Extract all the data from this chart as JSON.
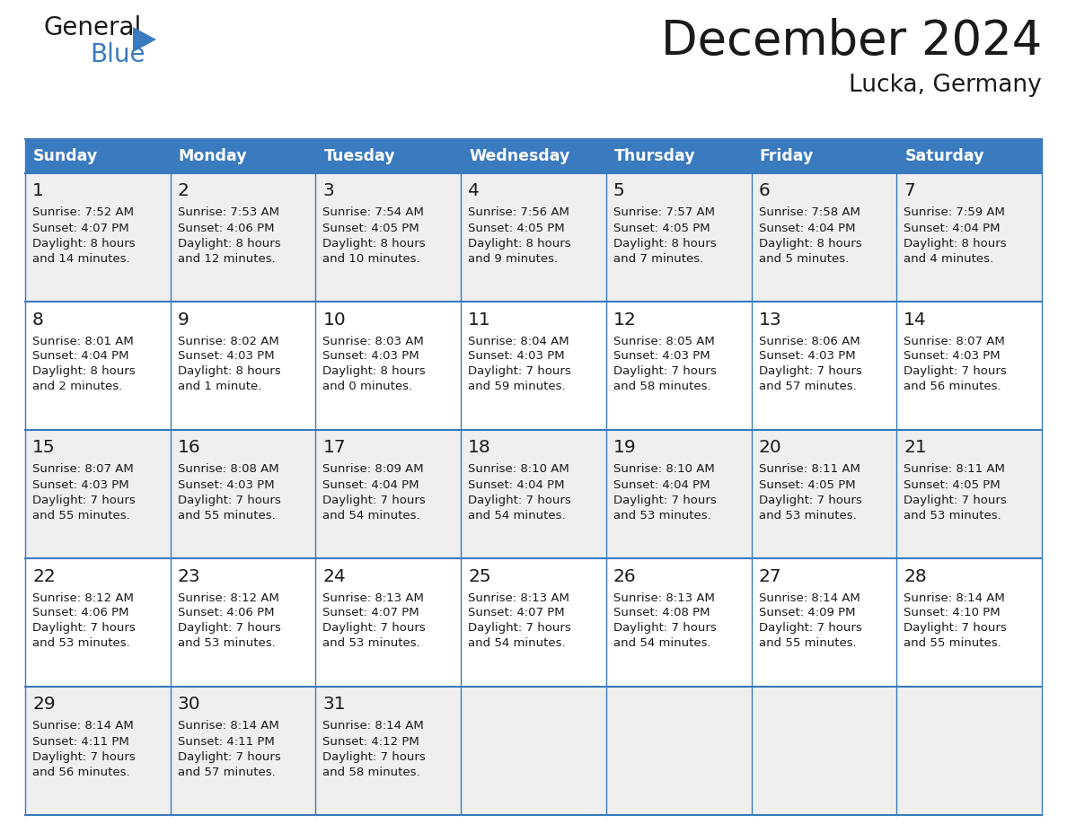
{
  "title": "December 2024",
  "subtitle": "Lucka, Germany",
  "header_color": "#3a7abf",
  "header_text_color": "#ffffff",
  "row_colors": [
    "#efefef",
    "#ffffff",
    "#efefef",
    "#ffffff",
    "#efefef"
  ],
  "border_color": "#3a7abf",
  "text_color": "#1a1a1a",
  "day_headers": [
    "Sunday",
    "Monday",
    "Tuesday",
    "Wednesday",
    "Thursday",
    "Friday",
    "Saturday"
  ],
  "days": [
    {
      "day": 1,
      "col": 0,
      "row": 0,
      "sunrise": "7:52 AM",
      "sunset": "4:07 PM",
      "daylight_hours": 8,
      "daylight_minutes": 14
    },
    {
      "day": 2,
      "col": 1,
      "row": 0,
      "sunrise": "7:53 AM",
      "sunset": "4:06 PM",
      "daylight_hours": 8,
      "daylight_minutes": 12
    },
    {
      "day": 3,
      "col": 2,
      "row": 0,
      "sunrise": "7:54 AM",
      "sunset": "4:05 PM",
      "daylight_hours": 8,
      "daylight_minutes": 10
    },
    {
      "day": 4,
      "col": 3,
      "row": 0,
      "sunrise": "7:56 AM",
      "sunset": "4:05 PM",
      "daylight_hours": 8,
      "daylight_minutes": 9
    },
    {
      "day": 5,
      "col": 4,
      "row": 0,
      "sunrise": "7:57 AM",
      "sunset": "4:05 PM",
      "daylight_hours": 8,
      "daylight_minutes": 7
    },
    {
      "day": 6,
      "col": 5,
      "row": 0,
      "sunrise": "7:58 AM",
      "sunset": "4:04 PM",
      "daylight_hours": 8,
      "daylight_minutes": 5
    },
    {
      "day": 7,
      "col": 6,
      "row": 0,
      "sunrise": "7:59 AM",
      "sunset": "4:04 PM",
      "daylight_hours": 8,
      "daylight_minutes": 4
    },
    {
      "day": 8,
      "col": 0,
      "row": 1,
      "sunrise": "8:01 AM",
      "sunset": "4:04 PM",
      "daylight_hours": 8,
      "daylight_minutes": 2
    },
    {
      "day": 9,
      "col": 1,
      "row": 1,
      "sunrise": "8:02 AM",
      "sunset": "4:03 PM",
      "daylight_hours": 8,
      "daylight_minutes": 1
    },
    {
      "day": 10,
      "col": 2,
      "row": 1,
      "sunrise": "8:03 AM",
      "sunset": "4:03 PM",
      "daylight_hours": 8,
      "daylight_minutes": 0
    },
    {
      "day": 11,
      "col": 3,
      "row": 1,
      "sunrise": "8:04 AM",
      "sunset": "4:03 PM",
      "daylight_hours": 7,
      "daylight_minutes": 59
    },
    {
      "day": 12,
      "col": 4,
      "row": 1,
      "sunrise": "8:05 AM",
      "sunset": "4:03 PM",
      "daylight_hours": 7,
      "daylight_minutes": 58
    },
    {
      "day": 13,
      "col": 5,
      "row": 1,
      "sunrise": "8:06 AM",
      "sunset": "4:03 PM",
      "daylight_hours": 7,
      "daylight_minutes": 57
    },
    {
      "day": 14,
      "col": 6,
      "row": 1,
      "sunrise": "8:07 AM",
      "sunset": "4:03 PM",
      "daylight_hours": 7,
      "daylight_minutes": 56
    },
    {
      "day": 15,
      "col": 0,
      "row": 2,
      "sunrise": "8:07 AM",
      "sunset": "4:03 PM",
      "daylight_hours": 7,
      "daylight_minutes": 55
    },
    {
      "day": 16,
      "col": 1,
      "row": 2,
      "sunrise": "8:08 AM",
      "sunset": "4:03 PM",
      "daylight_hours": 7,
      "daylight_minutes": 55
    },
    {
      "day": 17,
      "col": 2,
      "row": 2,
      "sunrise": "8:09 AM",
      "sunset": "4:04 PM",
      "daylight_hours": 7,
      "daylight_minutes": 54
    },
    {
      "day": 18,
      "col": 3,
      "row": 2,
      "sunrise": "8:10 AM",
      "sunset": "4:04 PM",
      "daylight_hours": 7,
      "daylight_minutes": 54
    },
    {
      "day": 19,
      "col": 4,
      "row": 2,
      "sunrise": "8:10 AM",
      "sunset": "4:04 PM",
      "daylight_hours": 7,
      "daylight_minutes": 53
    },
    {
      "day": 20,
      "col": 5,
      "row": 2,
      "sunrise": "8:11 AM",
      "sunset": "4:05 PM",
      "daylight_hours": 7,
      "daylight_minutes": 53
    },
    {
      "day": 21,
      "col": 6,
      "row": 2,
      "sunrise": "8:11 AM",
      "sunset": "4:05 PM",
      "daylight_hours": 7,
      "daylight_minutes": 53
    },
    {
      "day": 22,
      "col": 0,
      "row": 3,
      "sunrise": "8:12 AM",
      "sunset": "4:06 PM",
      "daylight_hours": 7,
      "daylight_minutes": 53
    },
    {
      "day": 23,
      "col": 1,
      "row": 3,
      "sunrise": "8:12 AM",
      "sunset": "4:06 PM",
      "daylight_hours": 7,
      "daylight_minutes": 53
    },
    {
      "day": 24,
      "col": 2,
      "row": 3,
      "sunrise": "8:13 AM",
      "sunset": "4:07 PM",
      "daylight_hours": 7,
      "daylight_minutes": 53
    },
    {
      "day": 25,
      "col": 3,
      "row": 3,
      "sunrise": "8:13 AM",
      "sunset": "4:07 PM",
      "daylight_hours": 7,
      "daylight_minutes": 54
    },
    {
      "day": 26,
      "col": 4,
      "row": 3,
      "sunrise": "8:13 AM",
      "sunset": "4:08 PM",
      "daylight_hours": 7,
      "daylight_minutes": 54
    },
    {
      "day": 27,
      "col": 5,
      "row": 3,
      "sunrise": "8:14 AM",
      "sunset": "4:09 PM",
      "daylight_hours": 7,
      "daylight_minutes": 55
    },
    {
      "day": 28,
      "col": 6,
      "row": 3,
      "sunrise": "8:14 AM",
      "sunset": "4:10 PM",
      "daylight_hours": 7,
      "daylight_minutes": 55
    },
    {
      "day": 29,
      "col": 0,
      "row": 4,
      "sunrise": "8:14 AM",
      "sunset": "4:11 PM",
      "daylight_hours": 7,
      "daylight_minutes": 56
    },
    {
      "day": 30,
      "col": 1,
      "row": 4,
      "sunrise": "8:14 AM",
      "sunset": "4:11 PM",
      "daylight_hours": 7,
      "daylight_minutes": 57
    },
    {
      "day": 31,
      "col": 2,
      "row": 4,
      "sunrise": "8:14 AM",
      "sunset": "4:12 PM",
      "daylight_hours": 7,
      "daylight_minutes": 58
    }
  ]
}
